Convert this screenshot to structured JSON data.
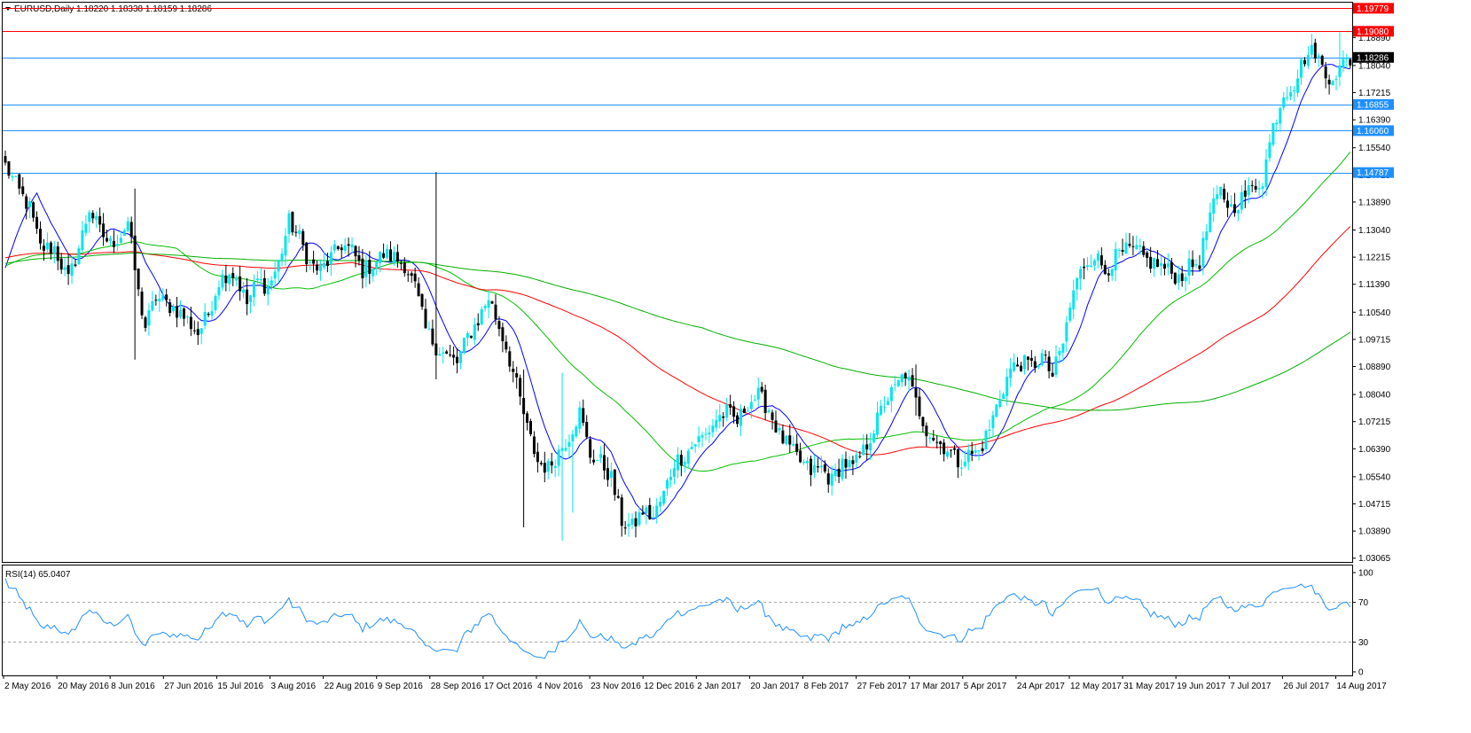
{
  "header": {
    "symbol": "EURUSD,Daily",
    "ohlc": "1.18220 1.18338 1.18159 1.18286"
  },
  "rsi_header": {
    "label": "RSI(14) 65.0407"
  },
  "colors": {
    "bull": "#00e5ee",
    "bear": "#000000",
    "ma_fast": "#0000ff",
    "ma_mid": "#00c000",
    "ma_red": "#ff0000",
    "ma_slow": "#00b000",
    "hline_red": "#ff0000",
    "hline_blue": "#1e90ff",
    "rsi": "#1e90ff",
    "price_tag": "#000000"
  },
  "chart_data": [
    {
      "type": "candlestick",
      "title": "EURUSD,Daily",
      "y_ticks": [
        "1.19779",
        "1.18890",
        "1.18040",
        "1.17215",
        "1.16390",
        "1.15540",
        "1.14715",
        "1.13890",
        "1.13040",
        "1.12215",
        "1.11390",
        "1.10540",
        "1.09715",
        "1.08890",
        "1.08040",
        "1.07215",
        "1.06390",
        "1.05540",
        "1.04715",
        "1.03890",
        "1.03065"
      ],
      "ylim": [
        1.0295,
        1.1995
      ],
      "x_labels": [
        "2 May 2016",
        "20 May 2016",
        "8 Jun 2016",
        "27 Jun 2016",
        "15 Jul 2016",
        "3 Aug 2016",
        "22 Aug 2016",
        "9 Sep 2016",
        "28 Sep 2016",
        "17 Oct 2016",
        "4 Nov 2016",
        "23 Nov 2016",
        "12 Dec 2016",
        "2 Jan 2017",
        "20 Jan 2017",
        "8 Feb 2017",
        "27 Feb 2017",
        "17 Mar 2017",
        "5 Apr 2017",
        "24 Apr 2017",
        "12 May 2017",
        "31 May 2017",
        "19 Jun 2017",
        "7 Jul 2017",
        "26 Jul 2017",
        "14 Aug 2017"
      ],
      "close_anchors": [
        [
          0,
          1.15
        ],
        [
          4,
          1.142
        ],
        [
          7,
          1.137
        ],
        [
          10,
          1.125
        ],
        [
          14,
          1.125
        ],
        [
          18,
          1.115
        ],
        [
          21,
          1.125
        ],
        [
          24,
          1.137
        ],
        [
          27,
          1.13
        ],
        [
          30,
          1.126
        ],
        [
          33,
          1.129
        ],
        [
          35,
          1.133
        ],
        [
          38,
          1.111
        ],
        [
          40,
          1.101
        ],
        [
          43,
          1.11
        ],
        [
          46,
          1.108
        ],
        [
          49,
          1.106
        ],
        [
          52,
          1.103
        ],
        [
          55,
          1.099
        ],
        [
          58,
          1.105
        ],
        [
          61,
          1.115
        ],
        [
          64,
          1.118
        ],
        [
          66,
          1.116
        ],
        [
          69,
          1.108
        ],
        [
          72,
          1.115
        ],
        [
          75,
          1.113
        ],
        [
          78,
          1.12
        ],
        [
          81,
          1.133
        ],
        [
          84,
          1.128
        ],
        [
          87,
          1.12
        ],
        [
          90,
          1.118
        ],
        [
          93,
          1.122
        ],
        [
          96,
          1.126
        ],
        [
          99,
          1.124
        ],
        [
          102,
          1.118
        ],
        [
          105,
          1.12
        ],
        [
          108,
          1.123
        ],
        [
          111,
          1.122
        ],
        [
          114,
          1.12
        ],
        [
          117,
          1.113
        ],
        [
          120,
          1.1
        ],
        [
          123,
          1.095
        ],
        [
          126,
          1.092
        ],
        [
          129,
          1.09
        ],
        [
          132,
          1.098
        ],
        [
          135,
          1.103
        ],
        [
          138,
          1.11
        ],
        [
          140,
          1.104
        ],
        [
          143,
          1.095
        ],
        [
          146,
          1.083
        ],
        [
          149,
          1.07
        ],
        [
          152,
          1.06
        ],
        [
          155,
          1.058
        ],
        [
          158,
          1.063
        ],
        [
          161,
          1.068
        ],
        [
          164,
          1.075
        ],
        [
          167,
          1.062
        ],
        [
          170,
          1.06
        ],
        [
          173,
          1.055
        ],
        [
          176,
          1.042
        ],
        [
          179,
          1.04
        ],
        [
          182,
          1.045
        ],
        [
          185,
          1.043
        ],
        [
          188,
          1.05
        ],
        [
          191,
          1.06
        ],
        [
          194,
          1.062
        ],
        [
          197,
          1.066
        ],
        [
          200,
          1.068
        ],
        [
          203,
          1.073
        ],
        [
          206,
          1.075
        ],
        [
          209,
          1.072
        ],
        [
          212,
          1.078
        ],
        [
          215,
          1.08
        ],
        [
          218,
          1.076
        ],
        [
          221,
          1.068
        ],
        [
          224,
          1.064
        ],
        [
          227,
          1.06
        ],
        [
          230,
          1.057
        ],
        [
          233,
          1.058
        ],
        [
          236,
          1.054
        ],
        [
          239,
          1.06
        ],
        [
          242,
          1.058
        ],
        [
          245,
          1.063
        ],
        [
          248,
          1.07
        ],
        [
          251,
          1.078
        ],
        [
          254,
          1.082
        ],
        [
          257,
          1.087
        ],
        [
          260,
          1.078
        ],
        [
          263,
          1.07
        ],
        [
          266,
          1.066
        ],
        [
          269,
          1.064
        ],
        [
          272,
          1.06
        ],
        [
          275,
          1.062
        ],
        [
          278,
          1.063
        ],
        [
          281,
          1.07
        ],
        [
          284,
          1.08
        ],
        [
          287,
          1.088
        ],
        [
          290,
          1.09
        ],
        [
          293,
          1.089
        ],
        [
          296,
          1.092
        ],
        [
          299,
          1.086
        ],
        [
          302,
          1.096
        ],
        [
          305,
          1.112
        ],
        [
          308,
          1.12
        ],
        [
          311,
          1.123
        ],
        [
          314,
          1.118
        ],
        [
          317,
          1.122
        ],
        [
          320,
          1.124
        ],
        [
          323,
          1.124
        ],
        [
          326,
          1.121
        ],
        [
          329,
          1.12
        ],
        [
          332,
          1.118
        ],
        [
          335,
          1.116
        ],
        [
          338,
          1.119
        ],
        [
          341,
          1.121
        ],
        [
          344,
          1.135
        ],
        [
          347,
          1.142
        ],
        [
          350,
          1.137
        ],
        [
          353,
          1.14
        ],
        [
          356,
          1.143
        ],
        [
          359,
          1.146
        ],
        [
          362,
          1.162
        ],
        [
          365,
          1.172
        ],
        [
          368,
          1.175
        ],
        [
          371,
          1.183
        ],
        [
          374,
          1.185
        ],
        [
          377,
          1.177
        ],
        [
          380,
          1.178
        ],
        [
          383,
          1.182
        ]
      ],
      "spikes": [
        [
          37,
          1.143,
          1.091
        ],
        [
          123,
          1.148,
          1.085
        ],
        [
          148,
          1.088,
          1.04
        ],
        [
          159,
          1.087,
          1.036
        ],
        [
          162,
          1.068,
          1.0445
        ],
        [
          260,
          1.0895,
          1.074
        ],
        [
          381,
          1.1905,
          1.1795
        ]
      ],
      "moving_averages": [
        {
          "period": 10,
          "color_key": "ma_fast"
        },
        {
          "period": 50,
          "color_key": "ma_mid"
        },
        {
          "period": 100,
          "color_key": "ma_red"
        },
        {
          "period": 200,
          "color_key": "ma_slow"
        }
      ],
      "price_levels": [
        {
          "value": "1.19779",
          "price": 1.19779,
          "color_key": "hline_red"
        },
        {
          "value": "1.19080",
          "price": 1.1908,
          "color_key": "hline_red"
        },
        {
          "value": "1.18286",
          "price": 1.18286,
          "color_key": "hline_blue",
          "current": true
        },
        {
          "value": "1.16855",
          "price": 1.16855,
          "color_key": "hline_blue"
        },
        {
          "value": "1.16060",
          "price": 1.1606,
          "color_key": "hline_blue"
        },
        {
          "value": "1.14787",
          "price": 1.14787,
          "color_key": "hline_blue"
        }
      ]
    },
    {
      "type": "line",
      "title": "RSI(14) 65.0407",
      "y_ticks": [
        "100",
        "70",
        "30",
        "0"
      ],
      "ylim": [
        0,
        100
      ],
      "guide_levels": [
        70,
        30
      ],
      "last_value": 65.0407,
      "period": 14
    }
  ]
}
